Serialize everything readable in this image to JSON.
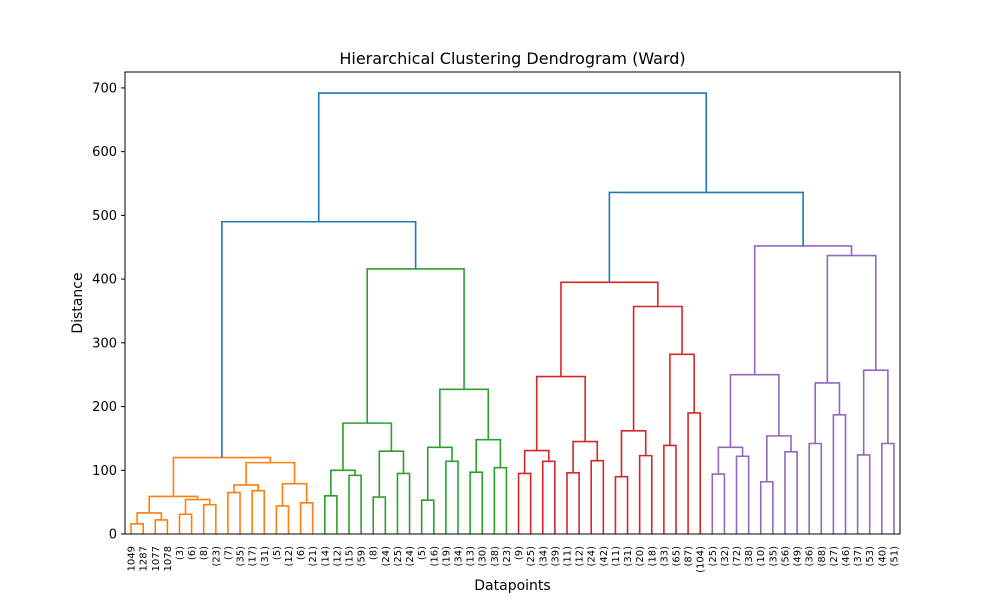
{
  "chart_data": {
    "type": "dendrogram",
    "title": "Hierarchical Clustering Dendrogram (Ward)",
    "xlabel": "Datapoints",
    "ylabel": "Distance",
    "ylim": [
      0,
      725
    ],
    "yticks": [
      0,
      100,
      200,
      300,
      400,
      500,
      600,
      700
    ],
    "leaf_labels": [
      "1049",
      "1287",
      "1077",
      "1078",
      "(3)",
      "(6)",
      "(8)",
      "(23)",
      "(7)",
      "(35)",
      "(17)",
      "(31)",
      "(5)",
      "(12)",
      "(6)",
      "(21)",
      "(14)",
      "(12)",
      "(15)",
      "(59)",
      "(8)",
      "(24)",
      "(25)",
      "(24)",
      "(5)",
      "(16)",
      "(19)",
      "(34)",
      "(13)",
      "(30)",
      "(38)",
      "(23)",
      "(9)",
      "(25)",
      "(34)",
      "(39)",
      "(11)",
      "(12)",
      "(24)",
      "(42)",
      "(11)",
      "(31)",
      "(20)",
      "(18)",
      "(33)",
      "(65)",
      "(87)",
      "(104)",
      "(25)",
      "(32)",
      "(72)",
      "(38)",
      "(10)",
      "(35)",
      "(56)",
      "(49)",
      "(36)",
      "(88)",
      "(27)",
      "(46)",
      "(37)",
      "(53)",
      "(40)",
      "(51)"
    ],
    "cluster_colors": {
      "orange": "#ff7f0e",
      "green": "#2ca02c",
      "red": "#d62728",
      "purple": "#9467bd",
      "root": "#1f77b4"
    },
    "merges": [
      {
        "l": 0,
        "r": 1,
        "h": 16,
        "c": "orange"
      },
      {
        "l": 2,
        "r": 3,
        "h": 22,
        "c": "orange"
      },
      {
        "l": 64,
        "r": 65,
        "h": 33,
        "c": "orange"
      },
      {
        "l": 4,
        "r": 5,
        "h": 31,
        "c": "orange"
      },
      {
        "l": 6,
        "r": 7,
        "h": 46,
        "c": "orange"
      },
      {
        "l": 67,
        "r": 68,
        "h": 54,
        "c": "orange"
      },
      {
        "l": 66,
        "r": 69,
        "h": 59,
        "c": "orange"
      },
      {
        "l": 8,
        "r": 9,
        "h": 65,
        "c": "orange"
      },
      {
        "l": 10,
        "r": 11,
        "h": 68,
        "c": "orange"
      },
      {
        "l": 71,
        "r": 72,
        "h": 77,
        "c": "orange"
      },
      {
        "l": 12,
        "r": 13,
        "h": 44,
        "c": "orange"
      },
      {
        "l": 14,
        "r": 15,
        "h": 49,
        "c": "orange"
      },
      {
        "l": 74,
        "r": 75,
        "h": 79,
        "c": "orange"
      },
      {
        "l": 73,
        "r": 76,
        "h": 112,
        "c": "orange"
      },
      {
        "l": 70,
        "r": 77,
        "h": 120,
        "c": "orange"
      },
      {
        "l": 16,
        "r": 17,
        "h": 60,
        "c": "green"
      },
      {
        "l": 18,
        "r": 19,
        "h": 92,
        "c": "green"
      },
      {
        "l": 79,
        "r": 80,
        "h": 100,
        "c": "green"
      },
      {
        "l": 20,
        "r": 21,
        "h": 58,
        "c": "green"
      },
      {
        "l": 22,
        "r": 23,
        "h": 95,
        "c": "green"
      },
      {
        "l": 82,
        "r": 83,
        "h": 130,
        "c": "green"
      },
      {
        "l": 81,
        "r": 84,
        "h": 174,
        "c": "green"
      },
      {
        "l": 24,
        "r": 25,
        "h": 53,
        "c": "green"
      },
      {
        "l": 26,
        "r": 27,
        "h": 114,
        "c": "green"
      },
      {
        "l": 86,
        "r": 87,
        "h": 136,
        "c": "green"
      },
      {
        "l": 28,
        "r": 29,
        "h": 97,
        "c": "green"
      },
      {
        "l": 30,
        "r": 31,
        "h": 104,
        "c": "green"
      },
      {
        "l": 89,
        "r": 90,
        "h": 148,
        "c": "green"
      },
      {
        "l": 88,
        "r": 91,
        "h": 227,
        "c": "green"
      },
      {
        "l": 85,
        "r": 92,
        "h": 416,
        "c": "green"
      },
      {
        "l": 32,
        "r": 33,
        "h": 95,
        "c": "red"
      },
      {
        "l": 34,
        "r": 35,
        "h": 114,
        "c": "red"
      },
      {
        "l": 94,
        "r": 95,
        "h": 131,
        "c": "red"
      },
      {
        "l": 36,
        "r": 37,
        "h": 96,
        "c": "red"
      },
      {
        "l": 38,
        "r": 39,
        "h": 115,
        "c": "red"
      },
      {
        "l": 97,
        "r": 98,
        "h": 145,
        "c": "red"
      },
      {
        "l": 96,
        "r": 99,
        "h": 247,
        "c": "red"
      },
      {
        "l": 40,
        "r": 41,
        "h": 90,
        "c": "red"
      },
      {
        "l": 42,
        "r": 43,
        "h": 123,
        "c": "red"
      },
      {
        "l": 101,
        "r": 102,
        "h": 162,
        "c": "red"
      },
      {
        "l": 44,
        "r": 45,
        "h": 139,
        "c": "red"
      },
      {
        "l": 46,
        "r": 47,
        "h": 190,
        "c": "red"
      },
      {
        "l": 104,
        "r": 105,
        "h": 282,
        "c": "red"
      },
      {
        "l": 103,
        "r": 106,
        "h": 357,
        "c": "red"
      },
      {
        "l": 100,
        "r": 107,
        "h": 395,
        "c": "red"
      },
      {
        "l": 48,
        "r": 49,
        "h": 94,
        "c": "purple"
      },
      {
        "l": 50,
        "r": 51,
        "h": 122,
        "c": "purple"
      },
      {
        "l": 109,
        "r": 110,
        "h": 136,
        "c": "purple"
      },
      {
        "l": 52,
        "r": 53,
        "h": 82,
        "c": "purple"
      },
      {
        "l": 54,
        "r": 55,
        "h": 129,
        "c": "purple"
      },
      {
        "l": 112,
        "r": 113,
        "h": 154,
        "c": "purple"
      },
      {
        "l": 111,
        "r": 114,
        "h": 250,
        "c": "purple"
      },
      {
        "l": 56,
        "r": 57,
        "h": 142,
        "c": "purple"
      },
      {
        "l": 58,
        "r": 59,
        "h": 187,
        "c": "purple"
      },
      {
        "l": 116,
        "r": 117,
        "h": 237,
        "c": "purple"
      },
      {
        "l": 60,
        "r": 61,
        "h": 124,
        "c": "purple"
      },
      {
        "l": 62,
        "r": 63,
        "h": 142,
        "c": "purple"
      },
      {
        "l": 119,
        "r": 120,
        "h": 257,
        "c": "purple"
      },
      {
        "l": 118,
        "r": 121,
        "h": 437,
        "c": "purple"
      },
      {
        "l": 115,
        "r": 122,
        "h": 452,
        "c": "purple"
      },
      {
        "l": 78,
        "r": 93,
        "h": 490,
        "c": "root"
      },
      {
        "l": 108,
        "r": 123,
        "h": 536,
        "c": "root"
      },
      {
        "l": 124,
        "r": 125,
        "h": 692,
        "c": "root"
      }
    ]
  }
}
